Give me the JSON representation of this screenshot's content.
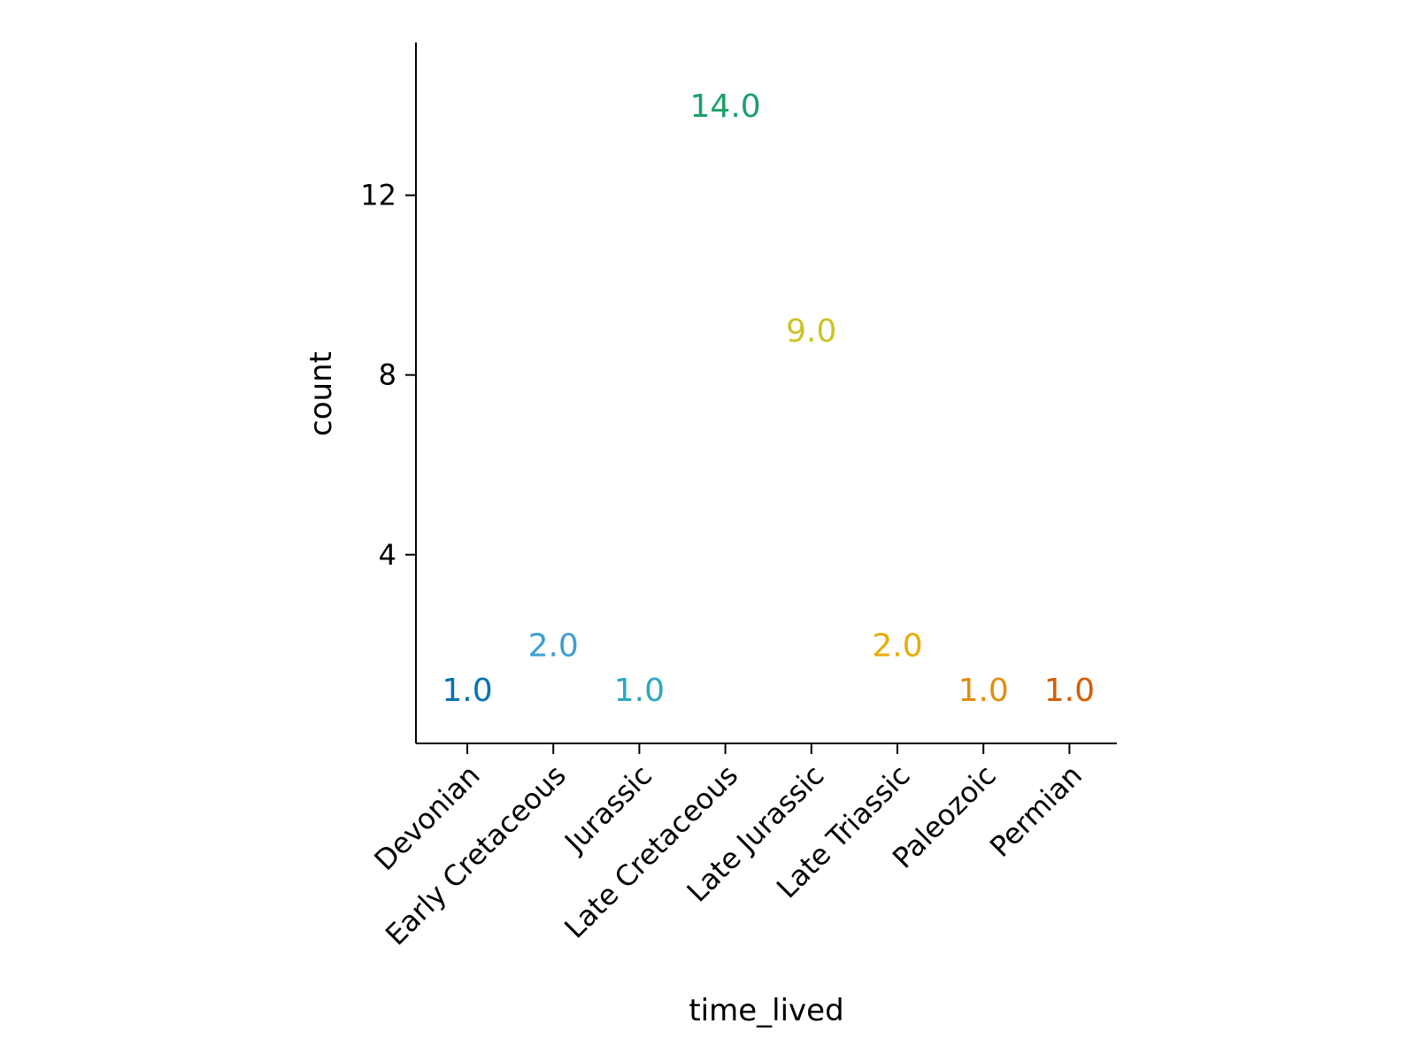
{
  "chart_data": {
    "type": "scatter",
    "categories": [
      "Devonian",
      "Early Cretaceous",
      "Jurassic",
      "Late Cretaceous",
      "Late Jurassic",
      "Late Triassic",
      "Paleozoic",
      "Permian"
    ],
    "values": [
      1.0,
      2.0,
      1.0,
      14.0,
      9.0,
      2.0,
      1.0,
      1.0
    ],
    "labels": [
      "1.0",
      "2.0",
      "1.0",
      "14.0",
      "9.0",
      "2.0",
      "1.0",
      "1.0"
    ],
    "colors": [
      "#0072b2",
      "#3e9fd3",
      "#2ba8c0",
      "#1aa06a",
      "#c9c525",
      "#e8ac0a",
      "#e08e10",
      "#d55e00"
    ],
    "xlabel": "time_lived",
    "ylabel": "count",
    "yticks": [
      4,
      8,
      12
    ],
    "ytick_labels": [
      "4",
      "8",
      "12"
    ],
    "ylim": [
      -0.2,
      15.4
    ],
    "grid": false,
    "mark": "text labels (no markers)"
  }
}
